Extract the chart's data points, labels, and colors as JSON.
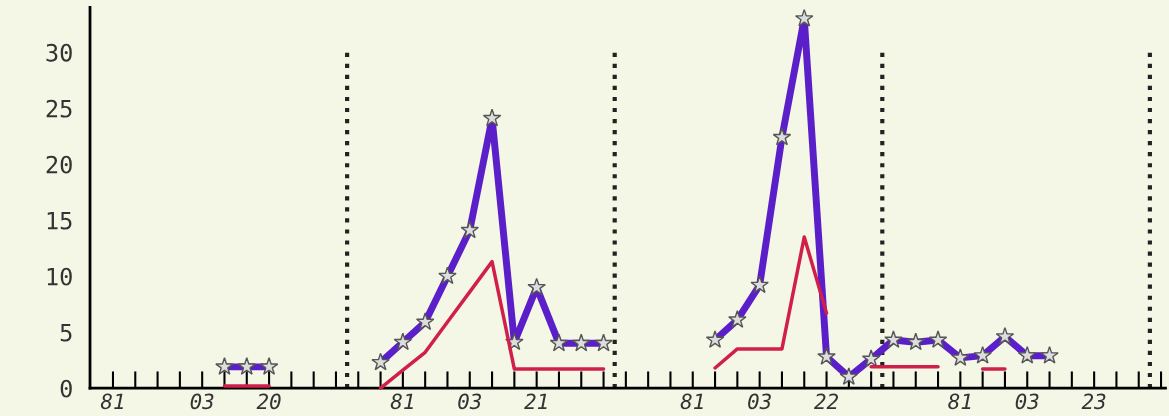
{
  "chart_data": {
    "type": "line",
    "categories": [
      "81",
      null,
      null,
      null,
      "03",
      null,
      null,
      "20",
      null,
      null,
      null,
      null,
      null,
      "81",
      null,
      null,
      "03",
      null,
      null,
      "21",
      null,
      null,
      null,
      null,
      null,
      null,
      "81",
      null,
      null,
      "03",
      null,
      null,
      "22",
      null,
      null,
      null,
      null,
      null,
      "81",
      null,
      null,
      "03",
      null,
      null,
      "23",
      null,
      null,
      null
    ],
    "ylim": [
      0,
      34
    ],
    "yticks": [
      0,
      5,
      10,
      15,
      20,
      25,
      30
    ],
    "grid": false,
    "legend": false,
    "series": [
      {
        "color": "#5a1fc8",
        "marker": "star",
        "values": [
          null,
          null,
          null,
          null,
          null,
          1.9,
          1.9,
          1.9,
          null,
          null,
          null,
          null,
          2.3,
          4.1,
          5.9,
          10.0,
          14.1,
          24.1,
          4.1,
          9.0,
          4.0,
          4.0,
          4.0,
          null,
          null,
          null,
          null,
          4.3,
          6.1,
          9.2,
          22.4,
          33,
          2.8,
          1.0,
          2.6,
          4.3,
          4.1,
          4.3,
          2.7,
          2.9,
          4.6,
          2.9,
          2.9,
          null,
          null,
          null,
          null,
          null
        ]
      },
      {
        "color": "#d0204a",
        "marker": "none",
        "values": [
          null,
          null,
          null,
          null,
          null,
          0.2,
          0.2,
          0.2,
          null,
          null,
          null,
          null,
          0,
          1.6,
          3.2,
          5.9,
          8.6,
          11.3,
          1.7,
          1.7,
          1.7,
          1.7,
          1.7,
          null,
          null,
          null,
          null,
          1.8,
          3.5,
          3.5,
          3.5,
          13.5,
          6.7,
          null,
          1.9,
          1.9,
          1.9,
          1.9,
          null,
          1.7,
          1.7,
          null,
          null,
          null,
          null,
          null,
          null,
          null
        ]
      }
    ]
  }
}
